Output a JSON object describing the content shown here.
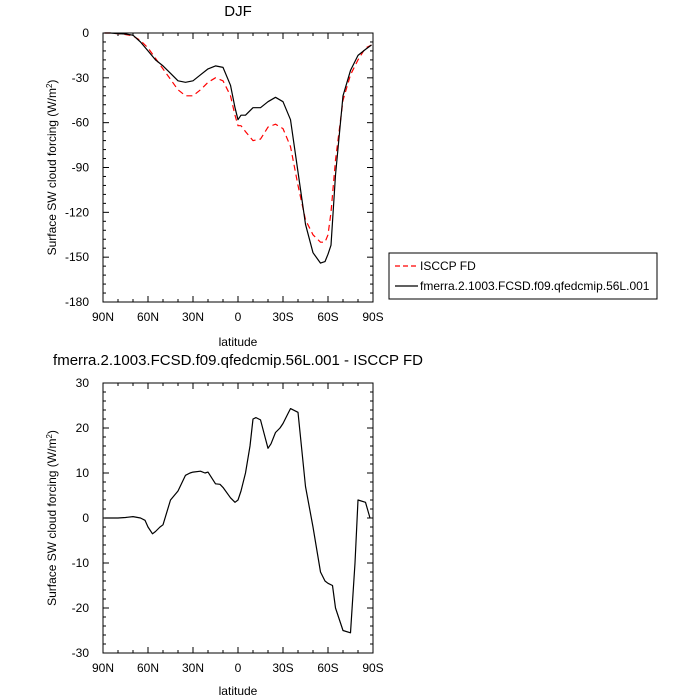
{
  "chart_data": [
    {
      "type": "line",
      "title": "DJF",
      "xlabel": "latitude",
      "ylabel": "Surface SW cloud forcing (W/m²)",
      "ylabel_main": "Surface SW cloud forcing (W/m",
      "ylabel_sup": "2",
      "ylabel_end": ")",
      "xlim": [
        90,
        -90
      ],
      "ylim": [
        -180,
        0
      ],
      "x_ticks": [
        90,
        60,
        30,
        0,
        -30,
        -60,
        -90
      ],
      "x_tick_labels": [
        "90N",
        "60N",
        "30N",
        "0",
        "30S",
        "60S",
        "90S"
      ],
      "y_ticks": [
        0,
        -30,
        -60,
        -90,
        -120,
        -150,
        -180
      ],
      "y_tick_labels": [
        "0",
        "-30",
        "-60",
        "-90",
        "-120",
        "-150",
        "-180"
      ],
      "legend_position": "right",
      "series": [
        {
          "name": "ISCCP FD",
          "color": "#ff0000",
          "style": "dashed",
          "x": [
            89,
            85,
            80,
            75,
            70,
            65,
            60,
            55,
            50,
            45,
            40,
            35,
            30,
            25,
            20,
            15,
            10,
            5,
            2,
            0,
            -2,
            -5,
            -10,
            -15,
            -20,
            -25,
            -30,
            -35,
            -40,
            -45,
            -50,
            -55,
            -58,
            -60,
            -62,
            -65,
            -70,
            -75,
            -80,
            -85,
            -89
          ],
          "y": [
            0,
            0,
            -0.5,
            -1,
            -2,
            -5,
            -10,
            -17,
            -24,
            -31,
            -38,
            -42,
            -42,
            -38,
            -33,
            -30,
            -32,
            -42,
            -55,
            -62,
            -62,
            -66,
            -72,
            -71,
            -63,
            -61,
            -64,
            -76,
            -102,
            -125,
            -135,
            -140,
            -140,
            -135,
            -120,
            -85,
            -45,
            -28,
            -18,
            -10,
            -8
          ]
        },
        {
          "name": "fmerra.2.1003.FCSD.f09.qfedcmip.56L.001",
          "color": "#000000",
          "style": "solid",
          "x": [
            89,
            85,
            80,
            75,
            70,
            65,
            60,
            55,
            50,
            45,
            40,
            35,
            30,
            25,
            20,
            15,
            10,
            5,
            2,
            0,
            -2,
            -5,
            -10,
            -15,
            -20,
            -25,
            -30,
            -35,
            -40,
            -45,
            -50,
            -55,
            -58,
            -60,
            -62,
            -65,
            -70,
            -75,
            -80,
            -85,
            -89
          ],
          "y": [
            0,
            0,
            -0.5,
            -0.7,
            -1.5,
            -6,
            -12,
            -18,
            -22,
            -27,
            -32,
            -33,
            -32,
            -28,
            -24,
            -22,
            -23,
            -35,
            -50,
            -58,
            -55,
            -55,
            -50,
            -50,
            -46,
            -43,
            -46,
            -58,
            -93,
            -128,
            -147,
            -154,
            -153,
            -148,
            -142,
            -95,
            -42,
            -25,
            -15,
            -11,
            -8
          ]
        }
      ]
    },
    {
      "type": "line",
      "title": "fmerra.2.1003.FCSD.f09.qfedcmip.56L.001 - ISCCP FD",
      "xlabel": "latitude",
      "ylabel": "Surface SW cloud forcing (W/m²)",
      "ylabel_main": "Surface SW cloud forcing (W/m",
      "ylabel_sup": "2",
      "ylabel_end": ")",
      "xlim": [
        90,
        -90
      ],
      "ylim": [
        -30,
        30
      ],
      "x_ticks": [
        90,
        60,
        30,
        0,
        -30,
        -60,
        -90
      ],
      "x_tick_labels": [
        "90N",
        "60N",
        "30N",
        "0",
        "30S",
        "60S",
        "90S"
      ],
      "y_ticks": [
        30,
        20,
        10,
        0,
        -10,
        -20,
        -30
      ],
      "y_tick_labels": [
        "30",
        "20",
        "10",
        "0",
        "-10",
        "-20",
        "-30"
      ],
      "series": [
        {
          "color": "#000000",
          "style": "solid",
          "x": [
            89,
            85,
            80,
            75,
            70,
            65,
            62,
            60,
            57,
            55,
            52,
            50,
            45,
            40,
            35,
            32,
            30,
            25,
            22,
            20,
            15,
            12,
            10,
            5,
            2,
            0,
            -2,
            -5,
            -8,
            -10,
            -12,
            -15,
            -18,
            -20,
            -22,
            -25,
            -28,
            -30,
            -33,
            -35,
            -40,
            -45,
            -50,
            -53,
            -55,
            -58,
            -60,
            -63,
            -65,
            -70,
            -75,
            -78,
            -80,
            -85,
            -88
          ],
          "y": [
            0,
            0,
            0,
            0.1,
            0.3,
            0,
            -0.5,
            -2,
            -3.5,
            -3,
            -2,
            -1.5,
            4,
            6,
            9.5,
            10,
            10.2,
            10.4,
            10,
            10.2,
            7.6,
            7.5,
            6.8,
            4.5,
            3.5,
            4,
            6,
            10,
            16,
            22,
            22.3,
            21.8,
            18,
            15.5,
            16.5,
            19,
            20,
            21,
            23,
            24.3,
            23.5,
            7,
            -2,
            -8,
            -12,
            -14,
            -14.5,
            -15,
            -20,
            -25,
            -25.5,
            -10,
            4,
            3.5,
            0
          ]
        }
      ]
    }
  ]
}
